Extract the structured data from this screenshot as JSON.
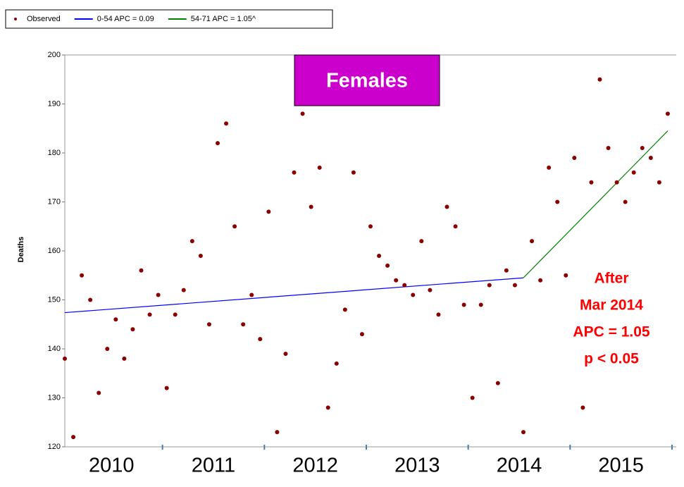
{
  "chart_data": {
    "type": "scatter",
    "title": "Females",
    "ylabel": "Deaths",
    "annotation": [
      "After",
      "Mar 2014",
      "APC = 1.05",
      "p < 0.05"
    ],
    "x": [
      0,
      1,
      2,
      3,
      4,
      5,
      6,
      7,
      8,
      9,
      10,
      11,
      12,
      13,
      14,
      15,
      16,
      17,
      18,
      19,
      20,
      21,
      22,
      23,
      24,
      25,
      26,
      27,
      28,
      29,
      30,
      31,
      32,
      33,
      34,
      35,
      36,
      37,
      38,
      39,
      40,
      41,
      42,
      43,
      44,
      45,
      46,
      47,
      48,
      49,
      50,
      51,
      52,
      53,
      54,
      55,
      56,
      57,
      58,
      59,
      60,
      61,
      62,
      63,
      64,
      65,
      66,
      67,
      68,
      69,
      70,
      71
    ],
    "series": [
      {
        "name": "Observed",
        "color": "#8b0000",
        "values": [
          138,
          122,
          155,
          150,
          131,
          140,
          146,
          138,
          144,
          156,
          147,
          151,
          132,
          147,
          152,
          162,
          159,
          145,
          182,
          186,
          165,
          145,
          151,
          142,
          168,
          123,
          139,
          176,
          188,
          169,
          177,
          128,
          137,
          148,
          176,
          143,
          165,
          159,
          157,
          154,
          153,
          151,
          162,
          152,
          147,
          169,
          165,
          149,
          130,
          149,
          153,
          133,
          156,
          153,
          123,
          162,
          154,
          177,
          170,
          155,
          179,
          128,
          174,
          195,
          181,
          174,
          170,
          176,
          181,
          179,
          174,
          188
        ]
      },
      {
        "name": "0-54 APC  = 0.09",
        "color": "#0000ff",
        "line": true,
        "x": [
          0,
          54
        ],
        "values": [
          147.4,
          154.5
        ]
      },
      {
        "name": "54-71 APC  = 1.05^",
        "color": "#008000",
        "line": true,
        "x": [
          54,
          71
        ],
        "values": [
          154.5,
          184.5
        ]
      }
    ],
    "xlim": [
      0,
      72
    ],
    "xticks": [
      {
        "value": 5.5,
        "label": "2010"
      },
      {
        "value": 17.5,
        "label": "2011"
      },
      {
        "value": 29.5,
        "label": "2012"
      },
      {
        "value": 41.5,
        "label": "2013"
      },
      {
        "value": 53.5,
        "label": "2014"
      },
      {
        "value": 65.5,
        "label": "2015"
      }
    ],
    "ylim": [
      120,
      200
    ],
    "yticks": [
      120,
      130,
      140,
      150,
      160,
      170,
      180,
      190,
      200
    ]
  }
}
